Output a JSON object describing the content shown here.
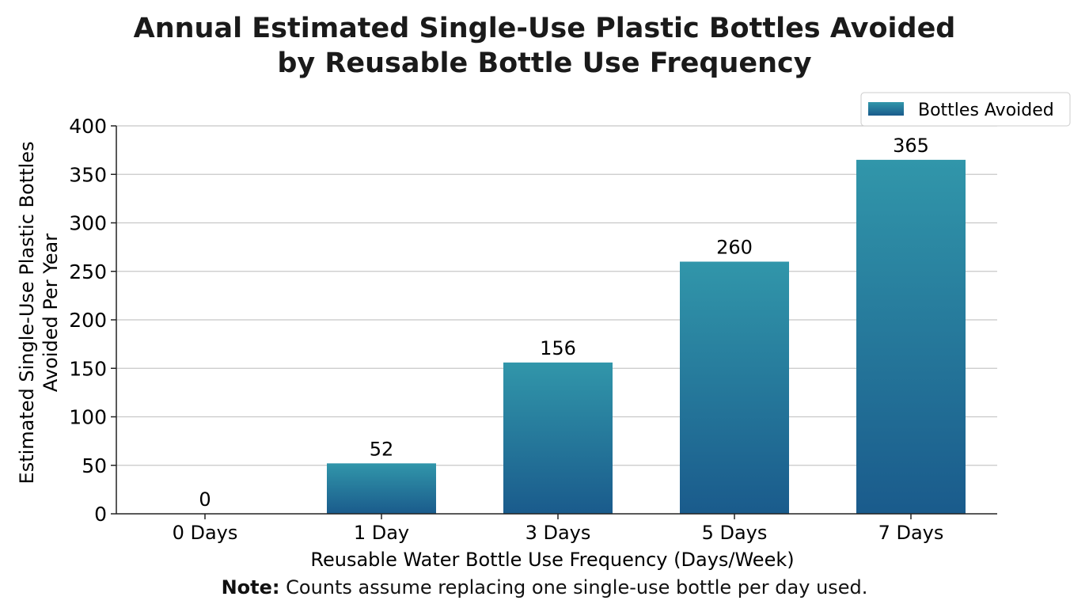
{
  "chart_data": {
    "type": "bar",
    "title": [
      "Annual Estimated Single-Use Plastic Bottles Avoided",
      "by Reusable Bottle Use Frequency"
    ],
    "xlabel": "Reusable Water Bottle Use Frequency (Days/Week)",
    "ylabel": [
      "Estimated Single-Use Plastic Bottles",
      "Avoided Per Year"
    ],
    "categories": [
      "0 Days",
      "1 Day",
      "3 Days",
      "5 Days",
      "7 Days"
    ],
    "series": [
      {
        "name": "Bottles Avoided",
        "values": [
          0,
          52,
          156,
          260,
          365
        ]
      }
    ],
    "ylim": [
      0,
      400
    ],
    "yticks": [
      0,
      50,
      100,
      150,
      200,
      250,
      300,
      350,
      400
    ],
    "grid": "horizontal",
    "legend": "top-right",
    "data_labels": true,
    "colors": {
      "bar_top": "#3196aa",
      "bar_bottom": "#1a5b8c",
      "grid": "#c8c8c8"
    },
    "note": {
      "bold": "Note:",
      "text": " Counts assume replacing one single-use bottle per day used."
    }
  }
}
